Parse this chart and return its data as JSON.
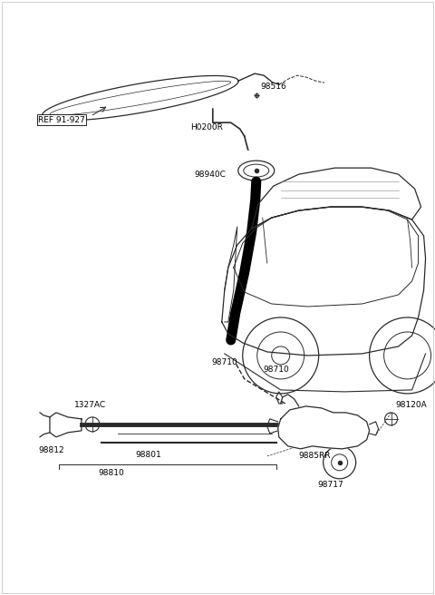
{
  "bg_color": "#ffffff",
  "line_color": "#2a2a2a",
  "text_color": "#000000",
  "fig_width": 4.8,
  "fig_height": 6.56,
  "dpi": 100,
  "xlim": [
    0,
    480
  ],
  "ylim": [
    0,
    656
  ]
}
